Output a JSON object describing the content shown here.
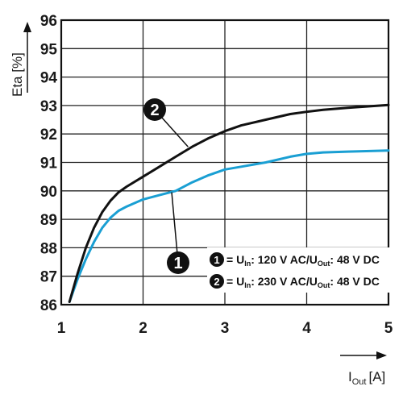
{
  "chart_data": {
    "type": "line",
    "title": "",
    "xlabel": {
      "main": "I",
      "sub": "Out",
      "unit": "[A]"
    },
    "ylabel": "Eta [%]",
    "xlim": [
      1,
      5
    ],
    "ylim": [
      86,
      96
    ],
    "x_ticks": [
      "1",
      "2",
      "3",
      "4",
      "5"
    ],
    "y_ticks": [
      "86",
      "87",
      "88",
      "89",
      "90",
      "91",
      "92",
      "93",
      "94",
      "95",
      "96"
    ],
    "grid": true,
    "legend_position": "bottom-right",
    "series": [
      {
        "badge": "1",
        "color": "#1a9fd3",
        "label": {
          "p1": "= U",
          "s1": "In",
          "p2": ": 120 V AC/U",
          "s2": "Out",
          "p3": ": 48 V DC"
        },
        "x": [
          1.1,
          1.2,
          1.3,
          1.4,
          1.5,
          1.6,
          1.7,
          1.8,
          2.0,
          2.2,
          2.4,
          2.6,
          2.8,
          3.0,
          3.2,
          3.5,
          3.8,
          4.0,
          4.2,
          4.5,
          5.0
        ],
        "y": [
          86.1,
          86.9,
          87.6,
          88.2,
          88.7,
          89.05,
          89.3,
          89.45,
          89.7,
          89.85,
          90.0,
          90.3,
          90.55,
          90.75,
          90.85,
          91.0,
          91.2,
          91.3,
          91.35,
          91.38,
          91.42
        ]
      },
      {
        "badge": "2",
        "color": "#111111",
        "label": {
          "p1": "= U",
          "s1": "In",
          "p2": ": 230 V AC/U",
          "s2": "Out",
          "p3": ": 48 V DC"
        },
        "x": [
          1.1,
          1.2,
          1.3,
          1.4,
          1.5,
          1.6,
          1.7,
          1.8,
          2.0,
          2.2,
          2.4,
          2.6,
          2.8,
          3.0,
          3.2,
          3.5,
          3.8,
          4.0,
          4.2,
          4.5,
          5.0
        ],
        "y": [
          86.1,
          87.1,
          88.0,
          88.7,
          89.25,
          89.65,
          89.95,
          90.15,
          90.5,
          90.85,
          91.2,
          91.55,
          91.85,
          92.1,
          92.3,
          92.5,
          92.7,
          92.78,
          92.85,
          92.92,
          93.02
        ]
      }
    ],
    "annotations": [
      {
        "badge": "1",
        "x": 2.35,
        "y": 89.95,
        "series": 0
      },
      {
        "badge": "2",
        "x": 2.55,
        "y": 91.55,
        "series": 1
      }
    ]
  }
}
